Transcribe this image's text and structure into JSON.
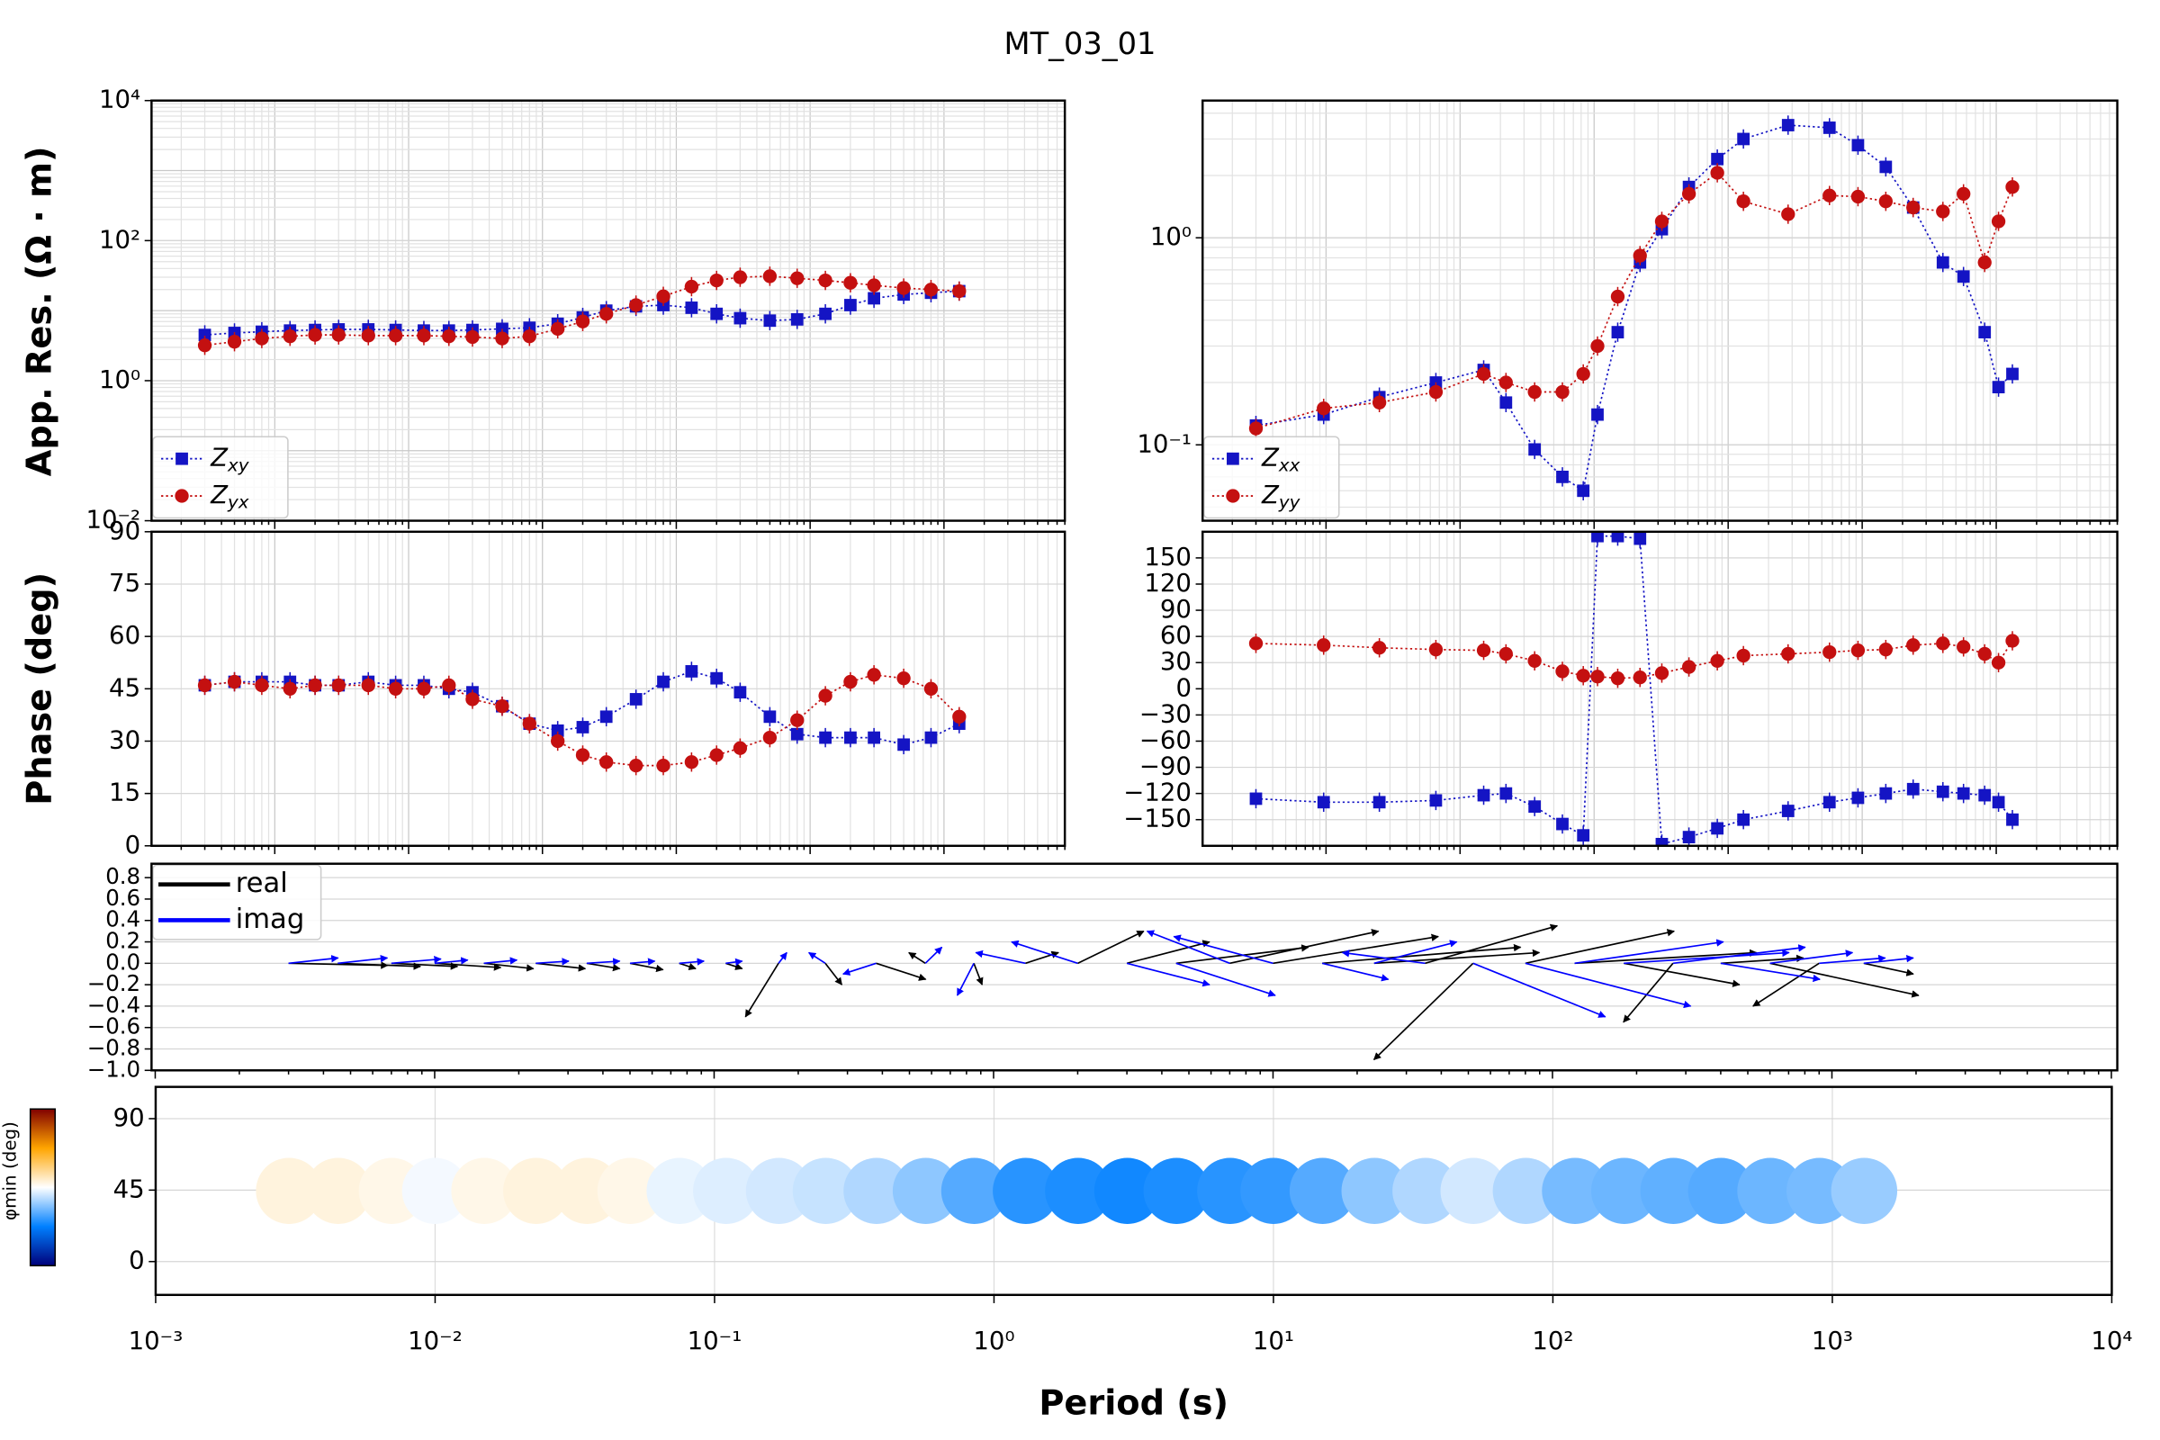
{
  "chart_data": [
    {
      "type": "line",
      "title": "MT_03_01",
      "ylabel": "App. Res. (Ω · m)",
      "xlog": true,
      "ylog": true,
      "grid": true,
      "legend": "lower left",
      "xlim": [
        0.0012,
        8000
      ],
      "ylim": [
        0.01,
        10000
      ],
      "yticks": [
        {
          "value": 10000,
          "label": "10⁴"
        },
        {
          "value": 100,
          "label": "10²"
        },
        {
          "value": 1,
          "label": "10⁰"
        },
        {
          "value": 0.01,
          "label": "10⁻²"
        }
      ],
      "x": [
        0.003,
        0.005,
        0.008,
        0.013,
        0.02,
        0.03,
        0.05,
        0.08,
        0.13,
        0.2,
        0.3,
        0.5,
        0.8,
        1.3,
        2,
        3,
        5,
        8,
        13,
        20,
        30,
        50,
        80,
        130,
        200,
        300,
        500,
        800,
        1300
      ],
      "series": [
        {
          "name": "Zxy",
          "color": "#1414c4",
          "marker": "square",
          "values": [
            4.5,
            4.8,
            5,
            5.2,
            5.3,
            5.4,
            5.4,
            5.3,
            5.2,
            5.2,
            5.3,
            5.5,
            5.7,
            6.5,
            8,
            10,
            11.5,
            12,
            11,
            9,
            7.8,
            7.2,
            7.5,
            9,
            12,
            15,
            17,
            18,
            19
          ]
        },
        {
          "name": "Zyx",
          "color": "#c41010",
          "marker": "circle",
          "values": [
            3.2,
            3.6,
            4,
            4.3,
            4.5,
            4.5,
            4.4,
            4.4,
            4.4,
            4.3,
            4.2,
            4.0,
            4.3,
            5.5,
            7,
            9,
            12,
            16,
            22,
            27,
            30,
            31,
            29,
            27,
            25,
            23,
            21,
            20,
            19
          ]
        }
      ]
    },
    {
      "type": "line",
      "xlog": true,
      "ylog": true,
      "grid": true,
      "legend": "lower left",
      "xlim": [
        0.0012,
        8000
      ],
      "ylim": [
        0.043,
        4.6
      ],
      "yticks": [
        {
          "value": 1,
          "label": "10⁰"
        },
        {
          "value": 0.1,
          "label": "10⁻¹"
        }
      ],
      "x": [
        0.003,
        0.0096,
        0.025,
        0.066,
        0.15,
        0.22,
        0.36,
        0.58,
        0.83,
        1.06,
        1.5,
        2.2,
        3.2,
        5.1,
        8.3,
        13,
        28,
        57,
        93,
        150,
        240,
        400,
        570,
        820,
        1040,
        1320
      ],
      "series": [
        {
          "name": "Zxx",
          "color": "#1414c4",
          "marker": "square",
          "values": [
            0.124,
            0.14,
            0.17,
            0.2,
            0.23,
            0.16,
            0.095,
            0.07,
            0.06,
            0.14,
            0.35,
            0.76,
            1.1,
            1.76,
            2.4,
            3.0,
            3.5,
            3.4,
            2.8,
            2.2,
            1.4,
            0.76,
            0.65,
            0.35,
            0.19,
            0.22
          ]
        },
        {
          "name": "Zyy",
          "color": "#c41010",
          "marker": "circle",
          "values": [
            0.12,
            0.15,
            0.16,
            0.18,
            0.22,
            0.2,
            0.18,
            0.18,
            0.22,
            0.3,
            0.52,
            0.82,
            1.2,
            1.63,
            2.06,
            1.5,
            1.3,
            1.6,
            1.58,
            1.5,
            1.4,
            1.34,
            1.63,
            0.76,
            1.2,
            1.76
          ]
        }
      ]
    },
    {
      "type": "line",
      "ylabel": "Phase (deg)",
      "xlog": true,
      "ylog": false,
      "grid": true,
      "xlim": [
        0.0012,
        8000
      ],
      "ylim": [
        0,
        90
      ],
      "yticks": [
        0,
        15,
        30,
        45,
        60,
        75,
        90
      ],
      "x": [
        0.003,
        0.005,
        0.008,
        0.013,
        0.02,
        0.03,
        0.05,
        0.08,
        0.13,
        0.2,
        0.3,
        0.5,
        0.8,
        1.3,
        2,
        3,
        5,
        8,
        13,
        20,
        30,
        50,
        80,
        130,
        200,
        300,
        500,
        800,
        1300
      ],
      "series": [
        {
          "color": "#1414c4",
          "marker": "square",
          "values": [
            46,
            47,
            47,
            47,
            46,
            46,
            47,
            46,
            46,
            45,
            44,
            40,
            35,
            33,
            34,
            37,
            42,
            47,
            50,
            48,
            44,
            37,
            32,
            31,
            31,
            31,
            29,
            31,
            35
          ]
        },
        {
          "color": "#c41010",
          "marker": "circle",
          "values": [
            46,
            47,
            46,
            45,
            46,
            46,
            46,
            45,
            45,
            46,
            42,
            40,
            35,
            30,
            26,
            24,
            23,
            23,
            24,
            26,
            28,
            31,
            36,
            43,
            47,
            49,
            48,
            45,
            37
          ]
        }
      ]
    },
    {
      "type": "line",
      "xlog": true,
      "ylog": false,
      "grid": true,
      "xlim": [
        0.0012,
        8000
      ],
      "ylim": [
        -180,
        180
      ],
      "yticks": [
        {
          "value": -150,
          "label": "−150"
        },
        {
          "value": -120,
          "label": "−120"
        },
        {
          "value": -90,
          "label": "−90"
        },
        {
          "value": -60,
          "label": "−60"
        },
        {
          "value": -30,
          "label": "−30"
        },
        0,
        30,
        60,
        90,
        120,
        150
      ],
      "x": [
        0.003,
        0.0096,
        0.025,
        0.066,
        0.15,
        0.22,
        0.36,
        0.58,
        0.83,
        1.06,
        1.5,
        2.2,
        3.2,
        5.1,
        8.3,
        13,
        28,
        57,
        93,
        150,
        240,
        400,
        570,
        820,
        1040,
        1320
      ],
      "series": [
        {
          "color": "#1414c4",
          "marker": "square",
          "values": [
            -126,
            -130,
            -130,
            -128,
            -122,
            -120,
            -135,
            -155,
            -168,
            175,
            175,
            172,
            -178,
            -170,
            -160,
            -150,
            -140,
            -130,
            -125,
            -120,
            -115,
            -118,
            -120,
            -122,
            -130,
            -150
          ]
        },
        {
          "color": "#c41010",
          "marker": "circle",
          "values": [
            52,
            50,
            47,
            45,
            44,
            40,
            32,
            20,
            15,
            14,
            12,
            13,
            18,
            25,
            32,
            38,
            40,
            42,
            44,
            45,
            50,
            52,
            48,
            40,
            30,
            55
          ]
        }
      ]
    },
    {
      "type": "quiver",
      "xlog": true,
      "ylog": false,
      "grid": true,
      "legend": "upper left",
      "xlim": [
        0.00097,
        10500
      ],
      "ylim": [
        -1.0,
        0.93
      ],
      "yticks": [
        0.8,
        0.6,
        0.4,
        0.2,
        {
          "value": 0,
          "label": "0.0"
        },
        {
          "value": -0.2,
          "label": "−0.2"
        },
        {
          "value": -0.4,
          "label": "−0.4"
        },
        {
          "value": -0.6,
          "label": "−0.6"
        },
        {
          "value": -0.8,
          "label": "−0.8"
        },
        {
          "value": -1.0,
          "label": "−1.0"
        }
      ],
      "x": [
        0.003,
        0.0045,
        0.007,
        0.01,
        0.015,
        0.023,
        0.035,
        0.05,
        0.075,
        0.11,
        0.17,
        0.25,
        0.38,
        0.57,
        0.85,
        1.3,
        2,
        3,
        4.5,
        7,
        10,
        15,
        23,
        35,
        52,
        80,
        120,
        180,
        270,
        400,
        600,
        900,
        1300
      ],
      "series": [
        {
          "name": "real",
          "color": "#000000",
          "tx": [
            0.6,
            0.5,
            0.4,
            0.4,
            0.3,
            0.3,
            0.2,
            0.2,
            0.1,
            0.1,
            -0.2,
            0.1,
            0.3,
            -0.1,
            0.05,
            0.2,
            0.4,
            0.5,
            0.8,
            0.9,
            1.0,
            1.2,
            1.0,
            0.8,
            -0.6,
            0.9,
            1.1,
            0.7,
            -0.3,
            0.5,
            0.9,
            -0.4,
            0.3
          ],
          "ty": [
            -0.02,
            -0.03,
            -0.03,
            -0.04,
            -0.05,
            -0.05,
            -0.05,
            -0.06,
            -0.05,
            -0.05,
            -0.5,
            -0.2,
            -0.15,
            0.1,
            -0.2,
            0.1,
            0.3,
            0.2,
            0.15,
            0.3,
            0.25,
            0.15,
            0.1,
            0.35,
            -0.9,
            0.3,
            0.1,
            -0.2,
            -0.55,
            0.05,
            -0.3,
            -0.4,
            -0.1
          ]
        },
        {
          "name": "imag",
          "color": "#0000ff",
          "tx": [
            0.3,
            0.3,
            0.3,
            0.2,
            0.2,
            0.2,
            0.2,
            0.15,
            0.15,
            0.1,
            0.05,
            -0.1,
            -0.2,
            0.1,
            -0.1,
            -0.3,
            -0.4,
            0.5,
            0.6,
            -0.5,
            -0.6,
            0.4,
            0.5,
            -0.5,
            0.8,
            1.0,
            0.9,
            1.0,
            0.8,
            0.6,
            0.5,
            0.4,
            0.3
          ],
          "ty": [
            0.05,
            0.05,
            0.04,
            0.03,
            0.03,
            0.02,
            0.02,
            0.02,
            0.02,
            0.02,
            0.1,
            0.1,
            -0.1,
            0.15,
            -0.3,
            0.1,
            0.2,
            -0.2,
            -0.3,
            0.3,
            0.25,
            -0.15,
            0.2,
            0.1,
            -0.5,
            -0.4,
            0.2,
            0.1,
            0.15,
            -0.15,
            0.1,
            0.05,
            0.05
          ]
        }
      ]
    },
    {
      "type": "ellipse",
      "xlabel": "Period (s)",
      "colorbar_label": "φmin (deg)",
      "xlog": true,
      "ylog": false,
      "grid": true,
      "xlim": [
        0.001,
        10000
      ],
      "ylim": [
        -21,
        110
      ],
      "clim": [
        0,
        90
      ],
      "colors": [
        "#00007a",
        "#0080ff",
        "#ffffff",
        "#ffa500",
        "#800000"
      ],
      "xticks": [
        {
          "value": 0.001,
          "label": "10⁻³"
        },
        {
          "value": 0.01,
          "label": "10⁻²"
        },
        {
          "value": 0.1,
          "label": "10⁻¹"
        },
        {
          "value": 1,
          "label": "10⁰"
        },
        {
          "value": 10,
          "label": "10¹"
        },
        {
          "value": 100,
          "label": "10²"
        },
        {
          "value": 1000,
          "label": "10³"
        },
        {
          "value": 10000,
          "label": "10⁴"
        }
      ],
      "yticks": [
        0,
        45,
        90
      ],
      "x": [
        0.003,
        0.0045,
        0.007,
        0.01,
        0.015,
        0.023,
        0.035,
        0.05,
        0.075,
        0.11,
        0.17,
        0.25,
        0.38,
        0.57,
        0.85,
        1.3,
        2,
        3,
        4.5,
        7,
        10,
        15,
        23,
        35,
        52,
        80,
        120,
        180,
        270,
        400,
        600,
        900,
        1300
      ],
      "values": [
        48,
        48,
        47,
        44,
        47,
        48,
        48,
        47,
        43,
        42,
        41,
        40,
        38,
        35,
        30,
        26,
        25,
        24,
        25,
        26,
        27,
        30,
        35,
        38,
        41,
        38,
        33,
        32,
        31,
        30,
        32,
        33,
        36
      ]
    }
  ]
}
